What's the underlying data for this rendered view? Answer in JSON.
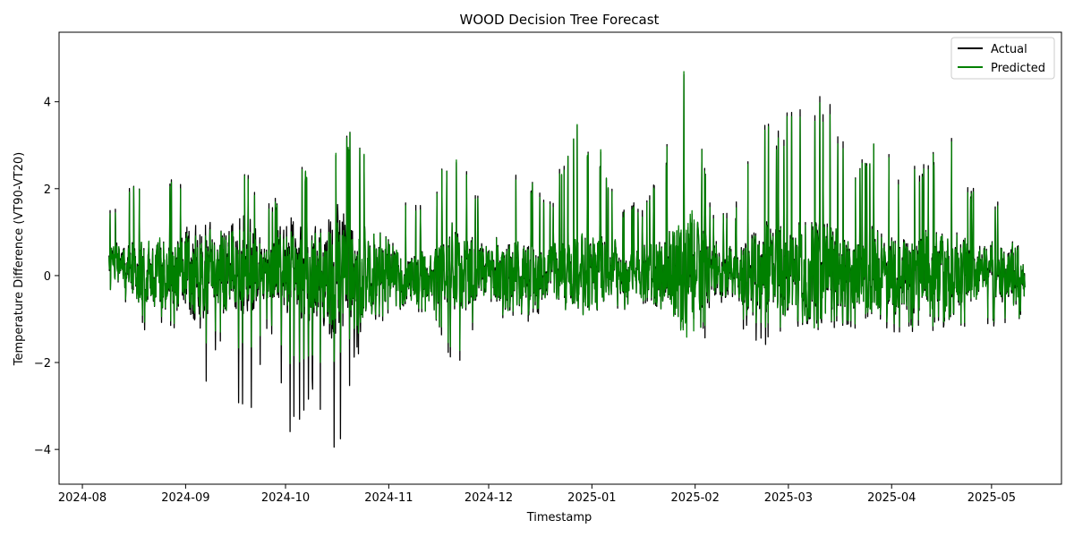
{
  "chart_data": {
    "type": "line",
    "title": "WOOD Decision Tree Forecast",
    "xlabel": "Timestamp",
    "ylabel": "Temperature Difference (VT90-VT20)",
    "xlim": [
      "2024-07-25",
      "2025-05-22"
    ],
    "ylim": [
      -4.8,
      5.6
    ],
    "x_ticks": [
      "2024-08",
      "2024-09",
      "2024-10",
      "2024-11",
      "2024-12",
      "2025-01",
      "2025-02",
      "2025-03",
      "2025-04",
      "2025-05"
    ],
    "y_ticks": [
      -4,
      -2,
      0,
      2,
      4
    ],
    "y_tick_labels": [
      "−4",
      "−2",
      "0",
      "2",
      "4"
    ],
    "grid": false,
    "legend_position": "top-right",
    "data_start": "2024-08-09",
    "data_end": "2025-05-11",
    "series": [
      {
        "name": "Actual",
        "color": "#000000",
        "x": [
          "2024-08-09",
          "2024-08-15",
          "2024-08-22",
          "2024-08-29",
          "2024-09-05",
          "2024-09-12",
          "2024-09-19",
          "2024-09-26",
          "2024-10-03",
          "2024-10-10",
          "2024-10-17",
          "2024-10-24",
          "2024-10-31",
          "2024-11-07",
          "2024-11-14",
          "2024-11-21",
          "2024-11-28",
          "2024-12-05",
          "2024-12-12",
          "2024-12-19",
          "2024-12-26",
          "2025-01-02",
          "2025-01-09",
          "2025-01-16",
          "2025-01-23",
          "2025-01-30",
          "2025-02-06",
          "2025-02-13",
          "2025-02-20",
          "2025-02-27",
          "2025-03-06",
          "2025-03-13",
          "2025-03-20",
          "2025-03-27",
          "2025-04-03",
          "2025-04-10",
          "2025-04-17",
          "2025-04-24",
          "2025-05-01",
          "2025-05-08",
          "2025-05-11"
        ],
        "min": [
          -1.2,
          -1.4,
          -1.2,
          -1.3,
          -3.5,
          -1.4,
          -3.9,
          -1.2,
          -3.8,
          -2.8,
          -4.3,
          -1.3,
          -1.1,
          -0.9,
          -0.8,
          -2.3,
          -1.0,
          -1.0,
          -1.1,
          -0.9,
          -0.8,
          -0.8,
          -0.8,
          -0.9,
          -0.9,
          -1.0,
          -1.6,
          -1.1,
          -1.7,
          -1.3,
          -1.2,
          -1.3,
          -1.2,
          -1.1,
          -1.5,
          -1.3,
          -1.2,
          -1.2,
          -1.2,
          -1.2,
          -0.9
        ],
        "max": [
          1.5,
          2.0,
          2.7,
          2.3,
          2.6,
          3.0,
          2.4,
          1.7,
          2.2,
          2.9,
          3.3,
          3.3,
          2.9,
          1.5,
          2.1,
          3.3,
          1.9,
          3.0,
          2.6,
          1.7,
          3.5,
          3.3,
          1.6,
          1.8,
          3.1,
          5.1,
          1.7,
          1.6,
          3.6,
          3.6,
          4.6,
          4.2,
          2.4,
          3.3,
          2.5,
          2.7,
          3.5,
          2.2,
          1.5,
          2.5,
          0.7
        ]
      },
      {
        "name": "Predicted",
        "color": "#008000",
        "x": [
          "2024-08-09",
          "2024-08-15",
          "2024-08-22",
          "2024-08-29",
          "2024-09-05",
          "2024-09-12",
          "2024-09-19",
          "2024-09-26",
          "2024-10-03",
          "2024-10-10",
          "2024-10-17",
          "2024-10-24",
          "2024-10-31",
          "2024-11-07",
          "2024-11-14",
          "2024-11-21",
          "2024-11-28",
          "2024-12-05",
          "2024-12-12",
          "2024-12-19",
          "2024-12-26",
          "2025-01-02",
          "2025-01-09",
          "2025-01-16",
          "2025-01-23",
          "2025-01-30",
          "2025-02-06",
          "2025-02-13",
          "2025-02-20",
          "2025-02-27",
          "2025-03-06",
          "2025-03-13",
          "2025-03-20",
          "2025-03-27",
          "2025-04-03",
          "2025-04-10",
          "2025-04-17",
          "2025-04-24",
          "2025-05-01",
          "2025-05-08",
          "2025-05-11"
        ],
        "min": [
          -1.1,
          -1.2,
          -1.1,
          -1.2,
          -2.0,
          -1.3,
          -2.0,
          -1.1,
          -2.1,
          -2.0,
          -2.0,
          -1.2,
          -1.0,
          -0.8,
          -0.8,
          -2.0,
          -0.9,
          -0.9,
          -1.0,
          -0.8,
          -0.8,
          -0.8,
          -0.8,
          -0.8,
          -0.9,
          -1.6,
          -1.0,
          -1.0,
          -1.2,
          -1.2,
          -1.1,
          -1.2,
          -1.1,
          -1.0,
          -1.3,
          -1.2,
          -1.1,
          -1.1,
          -1.1,
          -1.1,
          -0.9
        ],
        "max": [
          1.4,
          1.9,
          2.7,
          2.2,
          2.5,
          3.0,
          2.3,
          1.6,
          2.1,
          3.0,
          3.3,
          3.3,
          2.9,
          1.4,
          2.0,
          3.3,
          1.8,
          2.9,
          2.5,
          1.6,
          3.5,
          3.3,
          1.5,
          1.7,
          3.0,
          5.2,
          1.6,
          1.5,
          3.5,
          3.5,
          4.4,
          4.0,
          2.3,
          3.3,
          2.4,
          2.6,
          3.5,
          2.1,
          1.4,
          2.4,
          0.7
        ]
      }
    ]
  }
}
